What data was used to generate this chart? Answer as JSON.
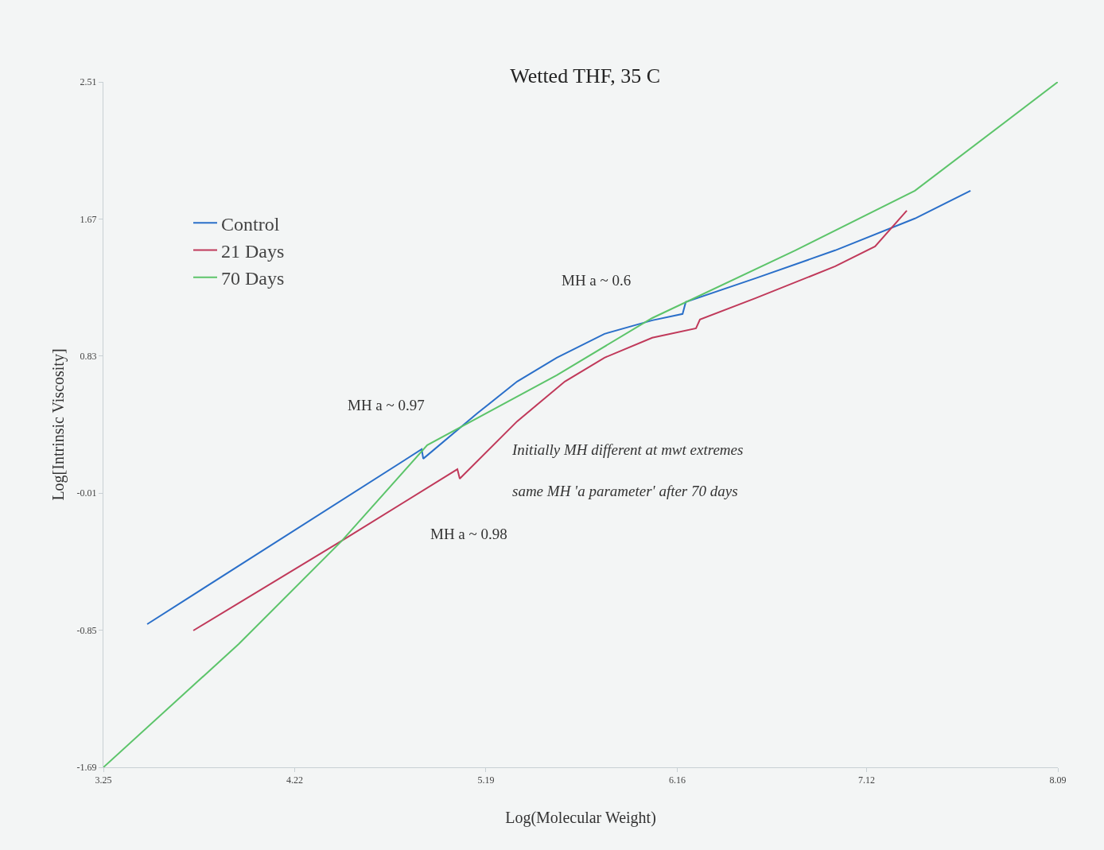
{
  "chart_data": {
    "type": "line",
    "title": "Wetted THF, 35 C",
    "xlabel": "Log(Molecular Weight)",
    "ylabel": "Log[Intrinsic Viscosity]",
    "xlim": [
      3.25,
      8.09
    ],
    "xticks": [
      3.25,
      4.22,
      5.19,
      6.16,
      7.12,
      8.09
    ],
    "ylim": [
      -1.69,
      2.51
    ],
    "yticks": [
      -1.69,
      -0.85,
      -0.01,
      0.83,
      1.67,
      2.51
    ],
    "grid": false,
    "legend": "top left",
    "marker": "none",
    "line_style": "solid",
    "series": [
      {
        "name": "Control",
        "color": "#2a6fc9",
        "x": [
          3.472,
          4.864,
          4.872,
          5.146,
          5.348,
          5.549,
          5.791,
          6.033,
          6.187,
          6.203,
          6.558,
          6.961,
          7.365,
          7.647
        ],
        "values": [
          -0.813,
          0.259,
          0.201,
          0.479,
          0.674,
          0.82,
          0.966,
          1.049,
          1.088,
          1.161,
          1.307,
          1.478,
          1.673,
          1.843
        ]
      },
      {
        "name": "21 Days",
        "color": "#c0395a",
        "x": [
          3.706,
          4.46,
          5.045,
          5.057,
          5.348,
          5.59,
          5.791,
          6.033,
          6.255,
          6.275,
          6.558,
          6.961,
          7.163,
          7.324
        ],
        "values": [
          -0.852,
          -0.301,
          0.137,
          0.079,
          0.43,
          0.674,
          0.82,
          0.942,
          1.0,
          1.054,
          1.185,
          1.38,
          1.502,
          1.721
        ]
      },
      {
        "name": "70 Days",
        "color": "#5cc46a",
        "x": [
          3.25,
          3.936,
          4.46,
          4.892,
          5.549,
          6.033,
          6.759,
          7.365,
          8.09
        ],
        "values": [
          -1.69,
          -0.935,
          -0.301,
          0.284,
          0.713,
          1.063,
          1.478,
          1.843,
          2.51
        ]
      }
    ],
    "annotations": [
      "MH a ~ 0.6",
      "MH a ~ 0.97",
      "MH a ~ 0.98",
      "Initially MH different at mwt extremes",
      "same MH 'a parameter' after 70 days"
    ]
  }
}
